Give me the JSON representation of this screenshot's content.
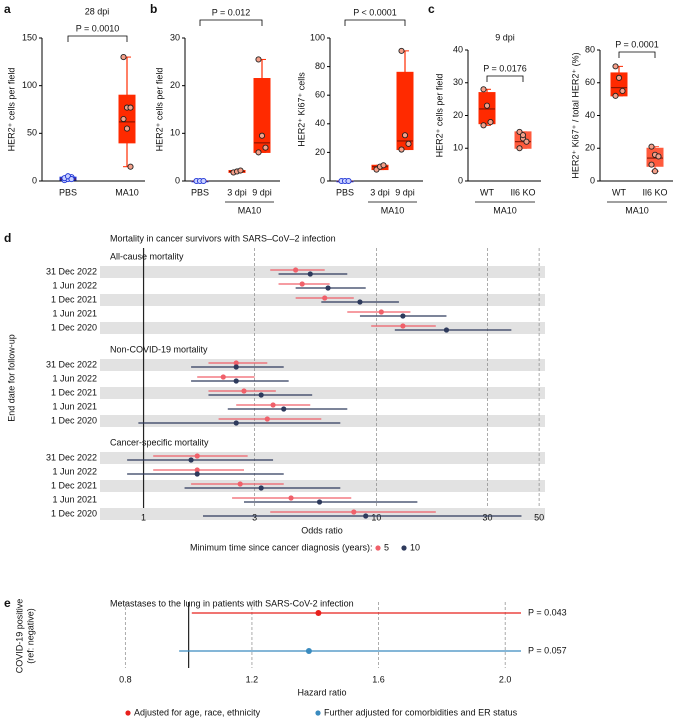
{
  "chart_data": [
    {
      "type": "box",
      "panel": "a",
      "title": "28 dpi",
      "ylabel": "HER2⁺ cells per field",
      "ylim": [
        0,
        150
      ],
      "yticks": [
        0,
        50,
        100,
        150
      ],
      "categories": [
        "PBS",
        "MA10"
      ],
      "boxes": [
        {
          "color": "#1f35d6",
          "min": 0,
          "q1": 1,
          "median": 2,
          "q3": 4,
          "max": 5,
          "points": [
            1,
            2,
            4,
            3,
            5,
            2
          ]
        },
        {
          "color": "#ff2a00",
          "min": 15,
          "q1": 40,
          "median": 62,
          "q3": 90,
          "max": 130,
          "points": [
            130,
            77,
            77,
            65,
            55,
            15
          ]
        }
      ],
      "comparison": {
        "label": "P = 0.0010",
        "between": [
          "PBS",
          "MA10"
        ]
      }
    },
    {
      "type": "box",
      "panel": "b",
      "ylabel": "HER2⁺ cells per field",
      "ylim": [
        0,
        30
      ],
      "yticks": [
        0,
        10,
        20,
        30
      ],
      "categories": [
        "PBS",
        "3 dpi",
        "9 dpi"
      ],
      "boxes": [
        {
          "color": "#1f35d6",
          "min": 0,
          "q1": 0,
          "median": 0,
          "q3": 0,
          "max": 0,
          "points": [
            0,
            0,
            0
          ]
        },
        {
          "color": "#ff2a00",
          "min": 1.8,
          "q1": 1.8,
          "median": 2,
          "q3": 2.2,
          "max": 2.2,
          "points": [
            1.8,
            2,
            2.2
          ]
        },
        {
          "color": "#ff2a00",
          "min": 6,
          "q1": 6,
          "median": 8,
          "q3": 21.5,
          "max": 25.5,
          "points": [
            25.5,
            9.5,
            7,
            6
          ]
        }
      ],
      "comparison": {
        "label": "P = 0.012",
        "between": [
          "PBS",
          "9 dpi"
        ]
      },
      "bracket": {
        "label": "MA10",
        "spans": [
          "3 dpi",
          "9 dpi"
        ]
      }
    },
    {
      "type": "box",
      "ylabel": "HER2⁺ Ki67⁺ cells",
      "ylim": [
        0,
        100
      ],
      "yticks": [
        0,
        20,
        40,
        60,
        80,
        100
      ],
      "categories": [
        "PBS",
        "3 dpi",
        "9 dpi"
      ],
      "boxes": [
        {
          "color": "#1f35d6",
          "min": 0,
          "q1": 0,
          "median": 0,
          "q3": 0,
          "max": 0,
          "points": [
            0,
            0,
            0
          ]
        },
        {
          "color": "#ff2a00",
          "min": 8,
          "q1": 8,
          "median": 10,
          "q3": 11,
          "max": 11,
          "points": [
            8,
            10,
            11
          ]
        },
        {
          "color": "#ff2a00",
          "min": 22,
          "q1": 22,
          "median": 28,
          "q3": 76,
          "max": 91,
          "points": [
            91,
            32,
            26,
            22
          ]
        }
      ],
      "comparison": {
        "label": "P < 0.0001",
        "between": [
          "PBS",
          "9 dpi"
        ]
      },
      "bracket": {
        "label": "MA10",
        "spans": [
          "3 dpi",
          "9 dpi"
        ]
      }
    },
    {
      "type": "box",
      "panel": "c",
      "title": "9 dpi",
      "ylabel": "HER2⁺ cells per field",
      "ylim": [
        0,
        40
      ],
      "yticks": [
        0,
        10,
        20,
        30,
        40
      ],
      "categories": [
        "WT",
        "Il6 KO"
      ],
      "boxes": [
        {
          "color": "#ff2a00",
          "min": 17,
          "q1": 17.5,
          "median": 22,
          "q3": 27,
          "max": 28,
          "points": [
            28,
            23,
            18,
            17
          ]
        },
        {
          "color": "#ff5a3c",
          "min": 10,
          "q1": 10,
          "median": 12,
          "q3": 15,
          "max": 15,
          "points": [
            15,
            13,
            12,
            10,
            14
          ]
        }
      ],
      "comparison": {
        "label": "P = 0.0176",
        "between": [
          "WT",
          "Il6 KO"
        ]
      },
      "bracket": {
        "label": "MA10",
        "spans": [
          "WT",
          "Il6 KO"
        ]
      }
    },
    {
      "type": "box",
      "ylabel": "HER2⁺ Ki67⁺ / total HER2⁺ (%)",
      "ylim": [
        0,
        80
      ],
      "yticks": [
        0,
        20,
        40,
        60,
        80
      ],
      "categories": [
        "WT",
        "Il6 KO"
      ],
      "boxes": [
        {
          "color": "#ff2a00",
          "min": 52,
          "q1": 52,
          "median": 57,
          "q3": 66,
          "max": 70,
          "points": [
            70,
            63,
            55,
            52
          ]
        },
        {
          "color": "#ff5a3c",
          "min": 6,
          "q1": 9,
          "median": 14,
          "q3": 20,
          "max": 21,
          "points": [
            21,
            16,
            15,
            10,
            6
          ]
        }
      ],
      "comparison": {
        "label": "P = 0.0001",
        "between": [
          "WT",
          "Il6 KO"
        ]
      },
      "bracket": {
        "label": "MA10",
        "spans": [
          "WT",
          "Il6 KO"
        ]
      }
    },
    {
      "type": "forest",
      "panel": "d",
      "title": "Mortality in cancer survivors with SARS–CoV–2 infection",
      "ylabel": "End date for follow-up",
      "xlabel": "Odds ratio",
      "xscale": "log",
      "xlim": [
        0.65,
        53
      ],
      "xticks": [
        1,
        3,
        10,
        30,
        50
      ],
      "reference": 1,
      "legend_title": "Minimum time since cancer diagnosis (years):",
      "series": [
        {
          "name": "5",
          "color": "#f0606a"
        },
        {
          "name": "10",
          "color": "#2e3a5c"
        }
      ],
      "groups": [
        {
          "title": "All-cause mortality",
          "rows": [
            "31 Dec 2022",
            "1 Jun 2022",
            "1 Dec 2021",
            "1 Jun 2021",
            "1 Dec 2020"
          ],
          "values": [
            [
              4.5,
              4.8,
              6,
              10.5,
              13
            ],
            [
              5.2,
              6.2,
              8.5,
              13,
              20
            ]
          ],
          "lower": [
            [
              3.5,
              3.8,
              4.5,
              7.5,
              9.5
            ],
            [
              3.8,
              4.5,
              5.8,
              8.5,
              12
            ]
          ],
          "upper": [
            [
              6,
              6.3,
              8,
              14,
              18
            ],
            [
              7.5,
              9,
              12.5,
              20,
              38
            ]
          ]
        },
        {
          "title": "Non-COVID-19 mortality",
          "rows": [
            "31 Dec 2022",
            "1 Jun 2022",
            "1 Dec 2021",
            "1 Jun 2021",
            "1 Dec 2020"
          ],
          "values": [
            [
              2.5,
              2.2,
              2.7,
              3.6,
              3.4
            ],
            [
              2.5,
              2.5,
              3.2,
              4,
              2.5
            ]
          ],
          "lower": [
            [
              1.9,
              1.7,
              1.9,
              2.5,
              2.1
            ],
            [
              1.6,
              1.6,
              1.9,
              2.3,
              0.95
            ]
          ],
          "upper": [
            [
              3.4,
              3,
              3.7,
              5.2,
              5.8
            ],
            [
              4,
              4.2,
              5.3,
              7.5,
              7
            ]
          ]
        },
        {
          "title": "Cancer-specific mortality",
          "rows": [
            "31 Dec 2022",
            "1 Jun 2022",
            "1 Dec 2021",
            "1 Jun 2021",
            "1 Dec 2020"
          ],
          "values": [
            [
              1.7,
              1.7,
              2.6,
              4.3,
              8
            ],
            [
              1.6,
              1.7,
              3.2,
              5.7,
              9
            ]
          ],
          "lower": [
            [
              1.1,
              1.1,
              1.6,
              2.4,
              3.5
            ],
            [
              0.85,
              0.85,
              1.5,
              2.7,
              1.8
            ]
          ],
          "upper": [
            [
              2.8,
              2.7,
              4,
              7.8,
              18
            ],
            [
              3.6,
              4,
              7,
              15,
              42
            ]
          ]
        }
      ]
    },
    {
      "type": "forest",
      "panel": "e",
      "title": "Metastases to the lung in patients with SARS-CoV-2 infection",
      "ylabel": [
        "COVID-19 positive",
        "(ref: negative)"
      ],
      "xlabel": "Hazard ratio",
      "xscale": "linear",
      "xlim": [
        0.72,
        2.11
      ],
      "xticks": [
        0.8,
        1.2,
        1.6,
        {
          "value": 2,
          "label": "2.0"
        }
      ],
      "reference": 1,
      "series": [
        {
          "name": "Adjusted for age, race, ethnicity",
          "color": "#e8201c",
          "value": 1.41,
          "lower": 1.01,
          "upper": 2.05,
          "p_label": "P = 0.043"
        },
        {
          "name": "Further adjusted for comorbidities and ER status",
          "color": "#3a8bbf",
          "value": 1.38,
          "lower": 0.97,
          "upper": 2.05,
          "p_label": "P = 0.057"
        }
      ]
    }
  ]
}
